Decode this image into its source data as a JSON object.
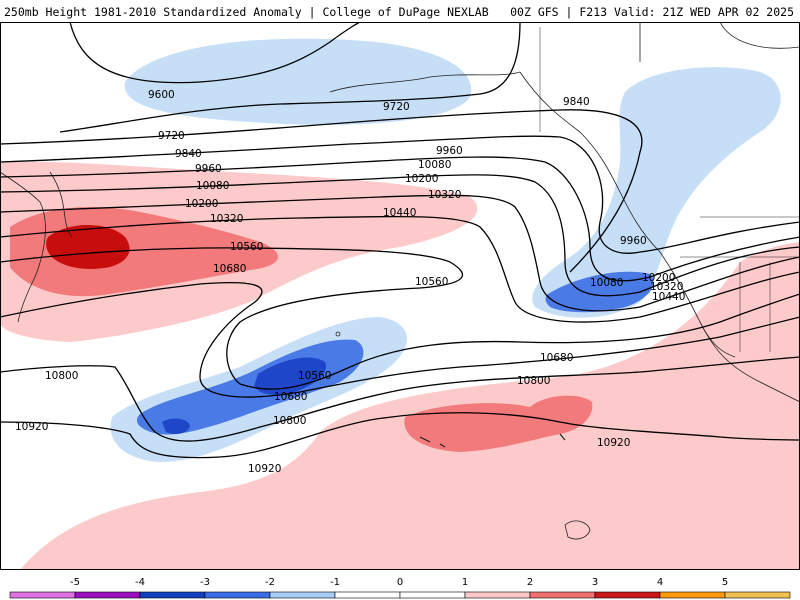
{
  "header": {
    "title_left": "250mb Height 1981-2010 Standardized Anomaly | College of DuPage NEXLAB",
    "title_right": "00Z GFS | F213 Valid: 21Z WED APR 02 2025"
  },
  "contour_labels": [
    "9600",
    "9720",
    "9720",
    "9840",
    "9840",
    "9960",
    "9960",
    "9960",
    "10080",
    "10080",
    "10080",
    "10200",
    "10200",
    "10200",
    "10320",
    "10320",
    "10320",
    "10440",
    "10440",
    "10560",
    "10560",
    "10560",
    "10680",
    "10680",
    "10680",
    "10800",
    "10800",
    "10800",
    "10920",
    "10920",
    "10920"
  ],
  "colorbar": {
    "ticks": [
      "-5",
      "-4",
      "-3",
      "-2",
      "-1",
      "0",
      "1",
      "2",
      "3",
      "4",
      "5"
    ],
    "colors": [
      "#e070e0",
      "#9a10c0",
      "#1040c0",
      "#3a6ee8",
      "#a8cdf5",
      "#ffffff",
      "#ffffff",
      "#ffc8c8",
      "#f07070",
      "#c81818",
      "#ff9a10",
      "#f0c050"
    ]
  },
  "colors": {
    "neg1": "#c6dff7",
    "neg2": "#4a7ae6",
    "neg3": "#1d46c8",
    "pos1": "#fccaca",
    "pos2": "#f27a7a",
    "pos3": "#c80d0d"
  }
}
